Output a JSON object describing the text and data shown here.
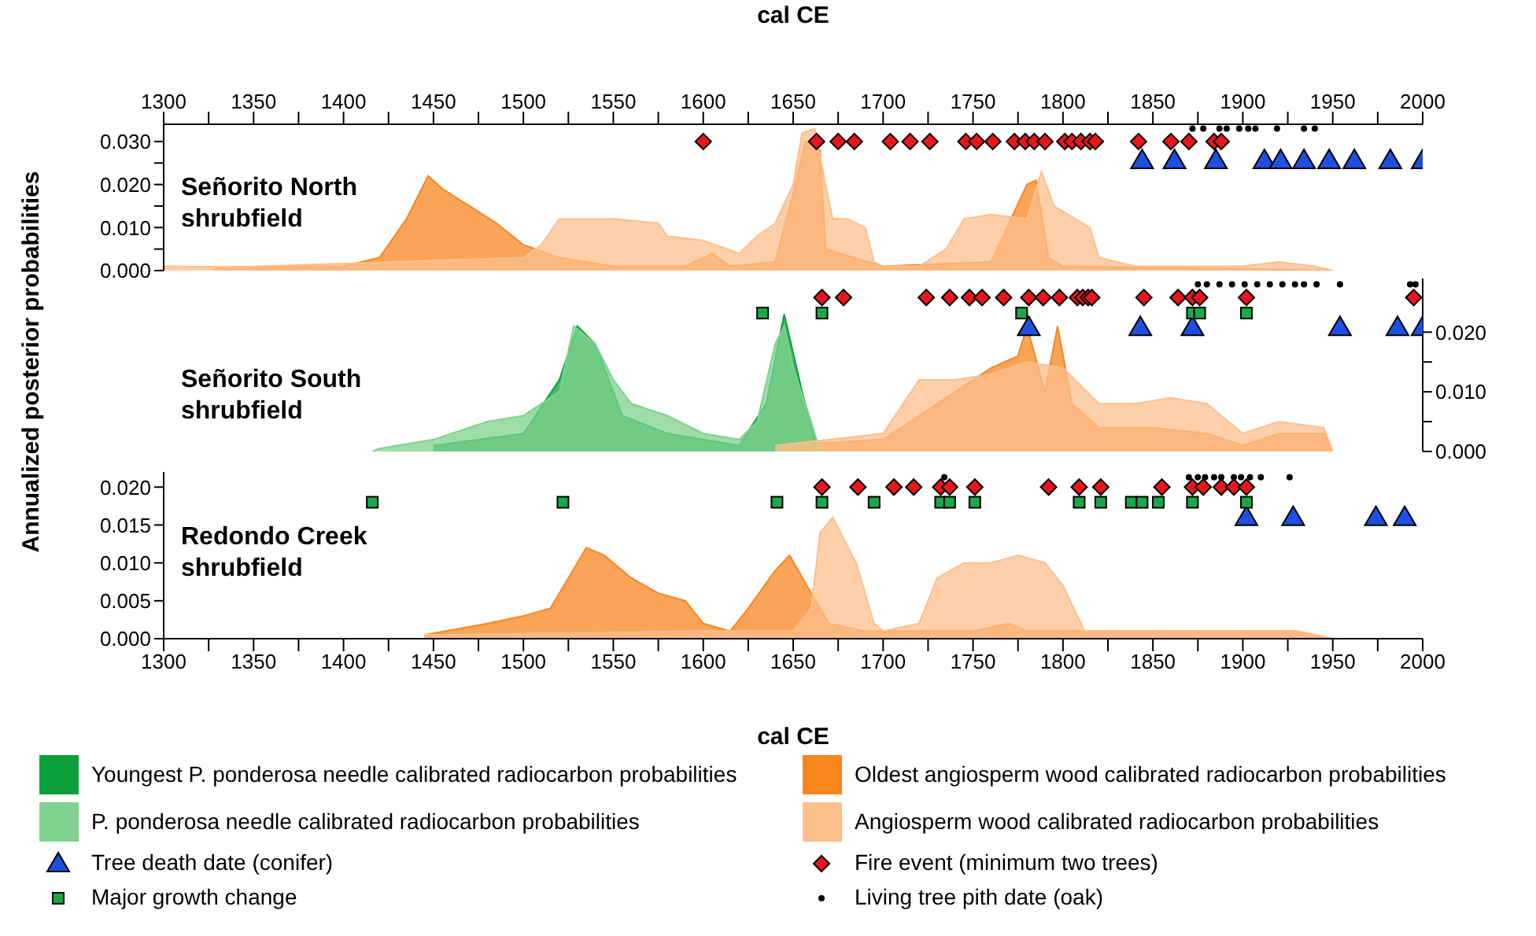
{
  "chart_data": [
    {
      "type": "area",
      "title": "Señorito North shrubfield",
      "xlabel": "cal CE",
      "xlim": [
        1300,
        2000
      ],
      "xticks": [
        1300,
        {
          "value": 1325,
          "label": null
        },
        1350,
        {
          "value": 1375,
          "label": null
        },
        1400,
        {
          "value": 1425,
          "label": null
        },
        1450,
        {
          "value": 1475,
          "label": null
        },
        1500,
        {
          "value": 1525,
          "label": null
        },
        1550,
        {
          "value": 1575,
          "label": null
        },
        1600,
        {
          "value": 1625,
          "label": null
        },
        1650,
        {
          "value": 1675,
          "label": null
        },
        1700,
        {
          "value": 1725,
          "label": null
        },
        1750,
        {
          "value": 1775,
          "label": null
        },
        1800,
        {
          "value": 1825,
          "label": null
        },
        1850,
        {
          "value": 1875,
          "label": null
        },
        1900,
        {
          "value": 1925,
          "label": null
        },
        1950,
        {
          "value": 1975,
          "label": null
        },
        2000
      ],
      "ylim": [
        0,
        0.034
      ],
      "yticks": [
        {
          "value": 0,
          "label": "0.000"
        },
        {
          "value": 0.005,
          "label": null
        },
        {
          "value": 0.01,
          "label": "0.010"
        },
        {
          "value": 0.015,
          "label": null
        },
        {
          "value": 0.02,
          "label": "0.020"
        },
        {
          "value": 0.025,
          "label": null
        },
        {
          "value": 0.03,
          "label": "0.030"
        }
      ],
      "series": [
        {
          "type": "area",
          "color": "#f7861f",
          "x": [
            1328,
            1330,
            1400,
            1420,
            1435,
            1447,
            1455,
            1470,
            1485,
            1500,
            1520,
            1550,
            1590,
            1605,
            1615,
            1640,
            1650,
            1657,
            1665,
            1668,
            1700,
            1760,
            1780,
            1785,
            1792,
            1800,
            1950
          ],
          "values": [
            0,
            0.0008,
            0.001,
            0.003,
            0.012,
            0.022,
            0.019,
            0.015,
            0.011,
            0.006,
            0.003,
            0.001,
            0.001,
            0.004,
            0.001,
            0.002,
            0.018,
            0.03,
            0.028,
            0.005,
            0.001,
            0.002,
            0.02,
            0.021,
            0.003,
            0.001,
            0
          ]
        },
        {
          "type": "area",
          "color": "#fdbf8c",
          "x": [
            1300,
            1340,
            1500,
            1510,
            1520,
            1550,
            1575,
            1580,
            1600,
            1620,
            1630,
            1640,
            1650,
            1655,
            1662,
            1668,
            1672,
            1680,
            1690,
            1695,
            1700,
            1720,
            1735,
            1745,
            1760,
            1780,
            1788,
            1795,
            1815,
            1820,
            1840,
            1900,
            1920,
            1940,
            1950
          ],
          "values": [
            0.001,
            0.0008,
            0.003,
            0.006,
            0.012,
            0.012,
            0.011,
            0.008,
            0.007,
            0.004,
            0.008,
            0.011,
            0.02,
            0.032,
            0.033,
            0.02,
            0.012,
            0.012,
            0.01,
            0.002,
            0.001,
            0.001,
            0.005,
            0.012,
            0.013,
            0.012,
            0.023,
            0.015,
            0.01,
            0.003,
            0.001,
            0.001,
            0.002,
            0.001,
            0
          ]
        },
        {
          "type": "scatter",
          "marker": "triangle",
          "color": "#1f4fe0",
          "x": [
            1844,
            1862,
            1885,
            1912,
            1921,
            1934,
            1948,
            1962,
            1982,
            2000
          ],
          "values": [
            0.0256,
            0.0256,
            0.0256,
            0.0256,
            0.0256,
            0.0256,
            0.0256,
            0.0256,
            0.0256,
            0.0256
          ]
        },
        {
          "type": "scatter",
          "marker": "diamond",
          "color": "#e8161b",
          "x": [
            1600,
            1663,
            1675,
            1684,
            1704,
            1715,
            1726,
            1746,
            1752,
            1761,
            1773,
            1779,
            1784,
            1790,
            1801,
            1805,
            1810,
            1815,
            1818,
            1842,
            1860,
            1870,
            1884,
            1888
          ],
          "values": [
            0.03,
            0.03,
            0.03,
            0.03,
            0.03,
            0.03,
            0.03,
            0.03,
            0.03,
            0.03,
            0.03,
            0.03,
            0.03,
            0.03,
            0.03,
            0.03,
            0.03,
            0.03,
            0.03,
            0.03,
            0.03,
            0.03,
            0.03,
            0.03
          ]
        },
        {
          "type": "scatter",
          "marker": "circle",
          "color": "#000000",
          "x": [
            1872,
            1878,
            1887,
            1891,
            1898,
            1903,
            1907,
            1919,
            1934,
            1940
          ],
          "values": [
            0.033,
            0.033,
            0.033,
            0.033,
            0.033,
            0.033,
            0.033,
            0.033,
            0.033,
            0.033
          ]
        }
      ]
    },
    {
      "type": "area",
      "title": "Señorito South shrubfield",
      "ylabel": "Annualized posterior probabilities",
      "legend": "bottom",
      "tick_labels": "y",
      "xlim": [
        1300,
        2000
      ],
      "ylim": [
        0,
        0.029
      ],
      "yticks": [
        {
          "value": 0,
          "label": "0.000"
        },
        {
          "value": 0.005,
          "label": null
        },
        {
          "value": 0.01,
          "label": "0.010"
        },
        {
          "value": 0.015,
          "label": null
        },
        {
          "value": 0.02,
          "label": "0.020"
        }
      ],
      "series": [
        {
          "name": "Youngest P. ponderosa needle calibrated radiocarbon probabilities",
          "type": "area",
          "color": "#0ca03a",
          "x": [
            1450,
            1500,
            1520,
            1530,
            1540,
            1555,
            1580,
            1600,
            1620,
            1635,
            1645,
            1655,
            1662,
            1665
          ],
          "values": [
            0.001,
            0.003,
            0.012,
            0.021,
            0.018,
            0.006,
            0.003,
            0.002,
            0.001,
            0.008,
            0.023,
            0.01,
            0.002,
            0
          ]
        },
        {
          "name": "Oldest angiosperm wood calibrated radiocarbon probabilities",
          "type": "area",
          "color": "#f7861f",
          "x": [
            1640,
            1700,
            1720,
            1740,
            1760,
            1775,
            1780,
            1790,
            1797,
            1805,
            1820,
            1850,
            1880,
            1900,
            1920,
            1945,
            1950
          ],
          "values": [
            0.001,
            0.002,
            0.006,
            0.01,
            0.014,
            0.016,
            0.021,
            0.01,
            0.021,
            0.008,
            0.004,
            0.004,
            0.003,
            0.001,
            0.003,
            0.003,
            0
          ]
        },
        {
          "name": "P. ponderosa needle calibrated radiocarbon probabilities",
          "type": "area",
          "color": "#7ed28e",
          "x": [
            1416,
            1420,
            1450,
            1480,
            1500,
            1520,
            1528,
            1540,
            1550,
            1560,
            1580,
            1600,
            1620,
            1630,
            1640,
            1645,
            1650,
            1660,
            1665
          ],
          "values": [
            0,
            0.0005,
            0.002,
            0.005,
            0.006,
            0.01,
            0.021,
            0.018,
            0.012,
            0.008,
            0.006,
            0.003,
            0.002,
            0.005,
            0.018,
            0.021,
            0.014,
            0.005,
            0
          ]
        },
        {
          "name": "Angiosperm wood calibrated radiocarbon probabilities",
          "type": "area",
          "color": "#fdbf8c",
          "x": [
            1640,
            1700,
            1720,
            1740,
            1760,
            1780,
            1800,
            1820,
            1840,
            1860,
            1880,
            1900,
            1920,
            1945,
            1950
          ],
          "values": [
            0.001,
            0.003,
            0.012,
            0.012,
            0.013,
            0.015,
            0.014,
            0.008,
            0.008,
            0.009,
            0.008,
            0.003,
            0.005,
            0.004,
            0
          ]
        },
        {
          "name": "Tree death date (conifer)",
          "type": "scatter",
          "marker": "triangle",
          "color": "#1f4fe0",
          "x": [
            1781,
            1843,
            1872,
            1954,
            1986,
            2000
          ],
          "values": [
            0.0208,
            0.0208,
            0.0208,
            0.0208,
            0.0208,
            0.0208
          ]
        },
        {
          "name": "Fire event (minimum two trees)",
          "type": "scatter",
          "marker": "diamond",
          "color": "#e8161b",
          "x": [
            1666,
            1678,
            1724,
            1737,
            1748,
            1755,
            1767,
            1781,
            1789,
            1798,
            1808,
            1811,
            1814,
            1816,
            1845,
            1864,
            1872,
            1876,
            1902,
            1995
          ],
          "values": [
            0.0258,
            0.0258,
            0.0258,
            0.0258,
            0.0258,
            0.0258,
            0.0258,
            0.0258,
            0.0258,
            0.0258,
            0.0258,
            0.0258,
            0.0258,
            0.0258,
            0.0258,
            0.0258,
            0.0258,
            0.0258,
            0.0258,
            0.0258
          ]
        },
        {
          "name": "Major growth change",
          "type": "scatter",
          "marker": "square",
          "color": "#19a84a",
          "x": [
            1633,
            1666,
            1777,
            1872,
            1876,
            1902
          ],
          "values": [
            0.0232,
            0.0232,
            0.0232,
            0.0232,
            0.0232,
            0.0232
          ]
        },
        {
          "name": "Living tree pith date (oak)",
          "type": "scatter",
          "marker": "circle",
          "color": "#000000",
          "x": [
            1875,
            1880,
            1887,
            1894,
            1901,
            1908,
            1915,
            1922,
            1929,
            1934,
            1941,
            1954,
            1993,
            1996
          ],
          "values": [
            0.028,
            0.028,
            0.028,
            0.028,
            0.028,
            0.028,
            0.028,
            0.028,
            0.028,
            0.028,
            0.028,
            0.028,
            0.028,
            0.028
          ]
        }
      ]
    },
    {
      "type": "area",
      "title": "Redondo Creek shrubfield",
      "xlabel": "cal CE",
      "xlim": [
        1300,
        2000
      ],
      "xticks": [
        1300,
        {
          "value": 1325,
          "label": null
        },
        1350,
        {
          "value": 1375,
          "label": null
        },
        1400,
        {
          "value": 1425,
          "label": null
        },
        1450,
        {
          "value": 1475,
          "label": null
        },
        1500,
        {
          "value": 1525,
          "label": null
        },
        1550,
        {
          "value": 1575,
          "label": null
        },
        1600,
        {
          "value": 1625,
          "label": null
        },
        1650,
        {
          "value": 1675,
          "label": null
        },
        1700,
        {
          "value": 1725,
          "label": null
        },
        1750,
        {
          "value": 1775,
          "label": null
        },
        1800,
        {
          "value": 1825,
          "label": null
        },
        1850,
        {
          "value": 1875,
          "label": null
        },
        1900,
        {
          "value": 1925,
          "label": null
        },
        1950,
        {
          "value": 1975,
          "label": null
        },
        2000
      ],
      "ylim": [
        0,
        0.022
      ],
      "yticks": [
        {
          "value": 0,
          "label": "0.000"
        },
        {
          "value": 0.005,
          "label": "0.005"
        },
        {
          "value": 0.01,
          "label": "0.010"
        },
        {
          "value": 0.015,
          "label": "0.015"
        },
        {
          "value": 0.02,
          "label": "0.020"
        }
      ],
      "series": [
        {
          "type": "area",
          "color": "#f7861f",
          "x": [
            1445,
            1480,
            1500,
            1515,
            1525,
            1535,
            1545,
            1560,
            1575,
            1590,
            1600,
            1615,
            1625,
            1640,
            1648,
            1660,
            1670,
            1690,
            1750,
            1770,
            1780,
            1850,
            1930,
            1950
          ],
          "values": [
            0.0005,
            0.002,
            0.003,
            0.004,
            0.008,
            0.012,
            0.011,
            0.008,
            0.006,
            0.005,
            0.002,
            0.001,
            0.004,
            0.009,
            0.011,
            0.006,
            0.002,
            0.001,
            0.001,
            0.002,
            0.001,
            0.001,
            0.001,
            0
          ]
        },
        {
          "type": "area",
          "color": "#fdbf8c",
          "x": [
            1445,
            1600,
            1650,
            1660,
            1665,
            1672,
            1685,
            1695,
            1700,
            1720,
            1730,
            1745,
            1760,
            1775,
            1790,
            1800,
            1812,
            1850,
            1930,
            1950
          ],
          "values": [
            0.0005,
            0.001,
            0.001,
            0.004,
            0.014,
            0.016,
            0.01,
            0.002,
            0.001,
            0.002,
            0.008,
            0.01,
            0.01,
            0.011,
            0.01,
            0.007,
            0.001,
            0.001,
            0.001,
            0
          ]
        },
        {
          "type": "scatter",
          "marker": "triangle",
          "color": "#1f4fe0",
          "x": [
            1902,
            1928,
            1974,
            1990
          ],
          "values": [
            0.016,
            0.016,
            0.016,
            0.016
          ]
        },
        {
          "type": "scatter",
          "marker": "diamond",
          "color": "#e8161b",
          "x": [
            1666,
            1686,
            1706,
            1717,
            1732,
            1737,
            1751,
            1792,
            1809,
            1821,
            1855,
            1872,
            1878,
            1888,
            1895,
            1902
          ],
          "values": [
            0.02,
            0.02,
            0.02,
            0.02,
            0.02,
            0.02,
            0.02,
            0.02,
            0.02,
            0.02,
            0.02,
            0.02,
            0.02,
            0.02,
            0.02,
            0.02
          ]
        },
        {
          "type": "scatter",
          "marker": "square",
          "color": "#19a84a",
          "x": [
            1416,
            1522,
            1641,
            1666,
            1695,
            1732,
            1737,
            1751,
            1809,
            1821,
            1838,
            1844,
            1853,
            1872,
            1902
          ],
          "values": [
            0.018,
            0.018,
            0.018,
            0.018,
            0.018,
            0.018,
            0.018,
            0.018,
            0.018,
            0.018,
            0.018,
            0.018,
            0.018,
            0.018,
            0.018
          ]
        },
        {
          "type": "scatter",
          "marker": "circle",
          "color": "#000000",
          "x": [
            1734,
            1870,
            1875,
            1879,
            1884,
            1888,
            1895,
            1899,
            1904,
            1910,
            1926
          ],
          "values": [
            0.0213,
            0.0213,
            0.0213,
            0.0213,
            0.0213,
            0.0213,
            0.0213,
            0.0213,
            0.0213,
            0.0213,
            0.0213
          ]
        }
      ]
    }
  ]
}
